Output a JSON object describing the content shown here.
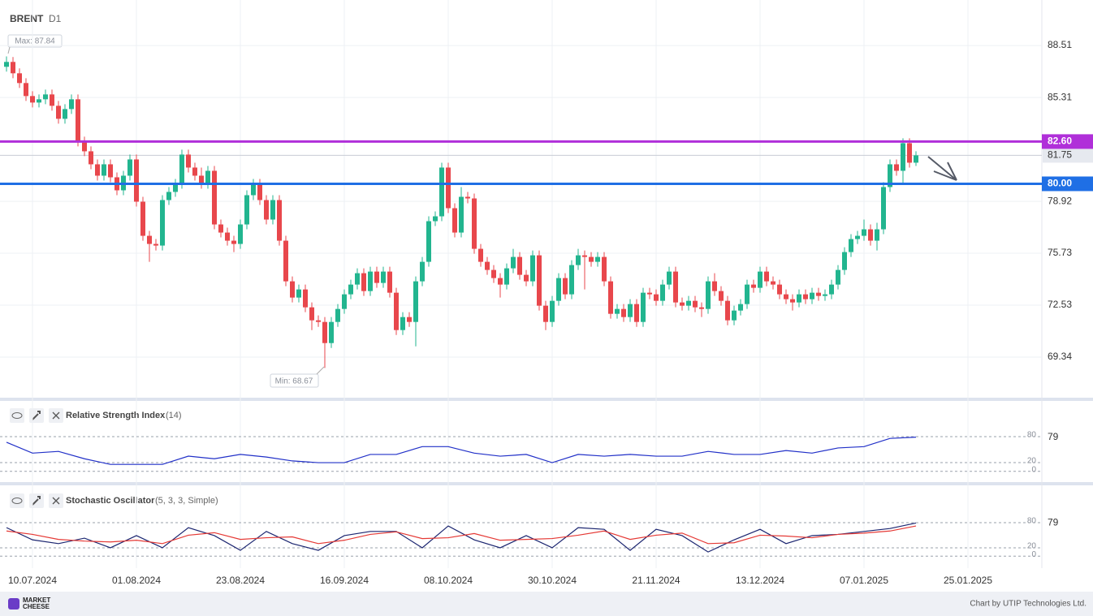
{
  "chart_data": [
    {
      "type": "candlestick",
      "title": "BRENT",
      "timeframe": "D1",
      "ylim": [
        66.84,
        91.31
      ],
      "yticks": [
        69.34,
        72.53,
        75.73,
        78.92,
        85.31,
        88.51
      ],
      "grid": true,
      "xticks": [
        {
          "value": 4,
          "label": "10.07.2024"
        },
        {
          "value": 20,
          "label": "01.08.2024"
        },
        {
          "value": 36,
          "label": "23.08.2024"
        },
        {
          "value": 52,
          "label": "16.09.2024"
        },
        {
          "value": 68,
          "label": "08.10.2024"
        },
        {
          "value": 84,
          "label": "30.10.2024"
        },
        {
          "value": 100,
          "label": "21.11.2024"
        },
        {
          "value": 116,
          "label": "13.12.2024"
        },
        {
          "value": 132,
          "label": "07.01.2025"
        },
        {
          "value": 148,
          "label": "25.01.2025"
        }
      ],
      "colors": {
        "up": "#22b58f",
        "down": "#e8474c"
      },
      "levels": [
        {
          "value": 82.6,
          "label": "82.60",
          "color": "#b02fd9"
        },
        {
          "value": 80,
          "label": "80.00",
          "color": "#1f6fe5"
        }
      ],
      "current": {
        "value": 81.75,
        "label": "81.75"
      },
      "annotations": [
        {
          "text": "Max: 87.84"
        },
        {
          "text": "Min: 68.67"
        }
      ],
      "ohlc": [
        [
          87.2,
          87.84,
          86.9,
          87.5
        ],
        [
          87.5,
          87.8,
          86.5,
          86.8
        ],
        [
          86.8,
          87.1,
          85.9,
          86.2
        ],
        [
          86.2,
          86.5,
          85.1,
          85.4
        ],
        [
          85.4,
          85.7,
          84.7,
          85.0
        ],
        [
          85.0,
          85.5,
          84.7,
          85.2
        ],
        [
          85.2,
          85.8,
          84.9,
          85.5
        ],
        [
          85.5,
          85.8,
          84.5,
          84.8
        ],
        [
          84.8,
          85.1,
          83.7,
          84.0
        ],
        [
          84.0,
          84.9,
          83.7,
          84.6
        ],
        [
          84.6,
          85.5,
          84.3,
          85.2
        ],
        [
          85.2,
          85.5,
          82.3,
          82.6
        ],
        [
          82.6,
          82.9,
          81.7,
          82.0
        ],
        [
          82.0,
          82.3,
          80.9,
          81.2
        ],
        [
          81.2,
          81.5,
          80.2,
          80.5
        ],
        [
          80.5,
          81.5,
          80.2,
          81.2
        ],
        [
          81.2,
          81.5,
          80.1,
          80.4
        ],
        [
          80.4,
          80.7,
          79.3,
          79.6
        ],
        [
          79.6,
          80.8,
          79.3,
          80.5
        ],
        [
          80.5,
          81.8,
          80.2,
          81.5
        ],
        [
          81.5,
          81.8,
          78.6,
          78.9
        ],
        [
          78.9,
          79.2,
          76.5,
          76.8
        ],
        [
          76.8,
          77.1,
          75.2,
          76.3
        ],
        [
          76.3,
          76.6,
          75.9,
          76.2
        ],
        [
          76.2,
          79.3,
          75.9,
          79.0
        ],
        [
          79.0,
          79.8,
          78.7,
          79.5
        ],
        [
          79.5,
          80.3,
          79.2,
          80.0
        ],
        [
          80.0,
          82.1,
          79.7,
          81.8
        ],
        [
          81.8,
          82.1,
          80.7,
          81.0
        ],
        [
          81.0,
          81.3,
          80.2,
          80.5
        ],
        [
          80.5,
          81.0,
          79.7,
          80.0
        ],
        [
          80.0,
          81.1,
          79.7,
          80.8
        ],
        [
          80.8,
          81.1,
          77.2,
          77.5
        ],
        [
          77.5,
          77.8,
          76.7,
          77.0
        ],
        [
          77.0,
          77.3,
          76.2,
          76.5
        ],
        [
          76.5,
          76.8,
          75.8,
          76.3
        ],
        [
          76.3,
          77.8,
          76.0,
          77.5
        ],
        [
          77.5,
          79.6,
          77.2,
          79.3
        ],
        [
          79.3,
          80.3,
          79.0,
          80.0
        ],
        [
          80.0,
          80.3,
          78.7,
          79.0
        ],
        [
          79.0,
          79.3,
          77.5,
          77.8
        ],
        [
          77.8,
          79.3,
          77.5,
          79.0
        ],
        [
          79.0,
          79.3,
          76.2,
          76.5
        ],
        [
          76.5,
          76.8,
          73.7,
          74.0
        ],
        [
          74.0,
          74.3,
          72.7,
          73.0
        ],
        [
          73.0,
          73.8,
          72.7,
          73.5
        ],
        [
          73.5,
          73.8,
          72.1,
          72.4
        ],
        [
          72.4,
          72.7,
          71.0,
          71.6
        ],
        [
          71.6,
          71.9,
          71.2,
          71.5
        ],
        [
          71.5,
          71.8,
          68.67,
          70.2
        ],
        [
          70.2,
          71.8,
          69.9,
          71.5
        ],
        [
          71.5,
          72.6,
          71.2,
          72.3
        ],
        [
          72.3,
          73.5,
          72.0,
          73.2
        ],
        [
          73.2,
          74.1,
          72.9,
          73.8
        ],
        [
          73.8,
          74.8,
          73.5,
          74.5
        ],
        [
          74.5,
          74.8,
          73.1,
          73.4
        ],
        [
          73.4,
          74.9,
          73.1,
          74.6
        ],
        [
          74.6,
          74.9,
          73.6,
          73.9
        ],
        [
          73.9,
          74.9,
          73.6,
          74.6
        ],
        [
          74.6,
          74.9,
          73.0,
          73.3
        ],
        [
          73.3,
          73.6,
          70.7,
          71.0
        ],
        [
          71.0,
          72.1,
          70.7,
          71.8
        ],
        [
          71.8,
          72.1,
          71.2,
          71.5
        ],
        [
          71.5,
          74.3,
          70.0,
          74.0
        ],
        [
          74.0,
          75.5,
          73.7,
          75.2
        ],
        [
          75.2,
          78.0,
          74.9,
          77.7
        ],
        [
          77.7,
          78.3,
          77.4,
          78.0
        ],
        [
          78.0,
          81.3,
          77.7,
          81.0
        ],
        [
          81.0,
          81.3,
          78.2,
          78.5
        ],
        [
          78.5,
          78.8,
          76.7,
          77.0
        ],
        [
          77.0,
          79.8,
          76.7,
          79.2
        ],
        [
          79.2,
          79.5,
          78.8,
          79.1
        ],
        [
          79.1,
          79.4,
          75.7,
          76.0
        ],
        [
          76.0,
          76.3,
          74.9,
          75.2
        ],
        [
          75.2,
          75.5,
          74.4,
          74.7
        ],
        [
          74.7,
          75.0,
          73.9,
          74.2
        ],
        [
          74.2,
          74.5,
          73.0,
          73.8
        ],
        [
          73.8,
          75.1,
          73.5,
          74.8
        ],
        [
          74.8,
          76.0,
          74.5,
          75.5
        ],
        [
          75.5,
          75.8,
          74.1,
          74.4
        ],
        [
          74.4,
          74.7,
          73.7,
          74.0
        ],
        [
          74.0,
          75.9,
          73.7,
          75.6
        ],
        [
          75.6,
          75.9,
          72.2,
          72.5
        ],
        [
          72.5,
          72.8,
          71.0,
          71.5
        ],
        [
          71.5,
          73.1,
          71.2,
          72.8
        ],
        [
          72.8,
          74.5,
          72.5,
          74.2
        ],
        [
          74.2,
          74.5,
          72.9,
          73.2
        ],
        [
          73.2,
          75.3,
          72.9,
          75.0
        ],
        [
          75.0,
          76.0,
          74.7,
          75.6
        ],
        [
          75.6,
          75.9,
          73.5,
          75.5
        ],
        [
          75.5,
          75.8,
          74.9,
          75.2
        ],
        [
          75.2,
          75.8,
          74.9,
          75.5
        ],
        [
          75.5,
          75.8,
          73.7,
          74.0
        ],
        [
          74.0,
          74.3,
          71.7,
          72.0
        ],
        [
          72.0,
          72.6,
          71.7,
          72.3
        ],
        [
          72.3,
          72.6,
          71.5,
          71.8
        ],
        [
          71.8,
          72.9,
          71.5,
          72.6
        ],
        [
          72.6,
          72.9,
          71.2,
          71.5
        ],
        [
          71.5,
          73.6,
          71.2,
          73.3
        ],
        [
          73.3,
          73.6,
          72.9,
          73.2
        ],
        [
          73.2,
          73.5,
          72.5,
          72.8
        ],
        [
          72.8,
          74.1,
          72.5,
          73.8
        ],
        [
          73.8,
          74.9,
          73.5,
          74.6
        ],
        [
          74.6,
          74.9,
          72.4,
          72.7
        ],
        [
          72.7,
          73.0,
          72.2,
          72.5
        ],
        [
          72.5,
          73.1,
          72.2,
          72.8
        ],
        [
          72.8,
          73.1,
          72.1,
          72.4
        ],
        [
          72.4,
          72.7,
          71.8,
          72.3
        ],
        [
          72.3,
          74.3,
          72.0,
          74.0
        ],
        [
          74.0,
          74.5,
          73.1,
          73.4
        ],
        [
          73.4,
          73.7,
          72.5,
          72.8
        ],
        [
          72.8,
          73.1,
          71.3,
          71.6
        ],
        [
          71.6,
          72.5,
          71.3,
          72.2
        ],
        [
          72.2,
          72.9,
          71.9,
          72.6
        ],
        [
          72.6,
          74.1,
          72.3,
          73.8
        ],
        [
          73.8,
          74.1,
          73.3,
          73.6
        ],
        [
          73.6,
          74.9,
          73.3,
          74.6
        ],
        [
          74.6,
          74.9,
          73.7,
          74.0
        ],
        [
          74.0,
          74.3,
          73.5,
          73.8
        ],
        [
          73.8,
          74.1,
          72.9,
          73.2
        ],
        [
          73.2,
          73.5,
          72.6,
          72.9
        ],
        [
          72.9,
          73.2,
          72.2,
          72.7
        ],
        [
          72.7,
          73.5,
          72.4,
          73.2
        ],
        [
          73.2,
          73.5,
          72.6,
          72.9
        ],
        [
          72.9,
          73.6,
          72.6,
          73.3
        ],
        [
          73.3,
          73.6,
          72.8,
          73.1
        ],
        [
          73.1,
          73.5,
          72.8,
          73.2
        ],
        [
          73.2,
          74.1,
          72.9,
          73.8
        ],
        [
          73.8,
          75.0,
          73.5,
          74.7
        ],
        [
          74.7,
          76.1,
          74.4,
          75.8
        ],
        [
          75.8,
          76.9,
          75.5,
          76.6
        ],
        [
          76.6,
          77.1,
          76.3,
          76.8
        ],
        [
          76.8,
          77.8,
          76.5,
          77.2
        ],
        [
          77.2,
          77.5,
          76.2,
          76.5
        ],
        [
          76.5,
          77.6,
          75.9,
          77.2
        ],
        [
          77.2,
          80.1,
          76.9,
          79.8
        ],
        [
          79.8,
          81.5,
          79.5,
          81.2
        ],
        [
          81.2,
          81.5,
          80.5,
          80.8
        ],
        [
          80.8,
          82.8,
          80.0,
          82.5
        ],
        [
          82.5,
          82.8,
          81.0,
          81.3
        ],
        [
          81.3,
          82.0,
          81.1,
          81.75
        ]
      ]
    },
    {
      "type": "line",
      "title": "Relative Strength Index",
      "params": "(14)",
      "ylim": [
        0,
        100
      ],
      "levels": [
        80,
        20,
        0
      ],
      "last": 79,
      "x": [
        0,
        4,
        8,
        12,
        16,
        20,
        24,
        28,
        32,
        36,
        40,
        44,
        48,
        52,
        56,
        60,
        64,
        68,
        72,
        76,
        80,
        84,
        88,
        92,
        96,
        100,
        104,
        108,
        112,
        116,
        120,
        124,
        128,
        132,
        136,
        140
      ],
      "series": [
        {
          "color": "#2130c8",
          "values": [
            67,
            42,
            46,
            29,
            16,
            16,
            16,
            35,
            29,
            39,
            33,
            24,
            20,
            20,
            39,
            39,
            57,
            57,
            42,
            35,
            39,
            20,
            39,
            35,
            39,
            35,
            35,
            46,
            39,
            39,
            48,
            42,
            54,
            57,
            76,
            79
          ]
        }
      ]
    },
    {
      "type": "line",
      "title": "Stochastic Oscillator",
      "params": "(5, 3, 3, Simple)",
      "ylim": [
        0,
        100
      ],
      "levels": [
        80,
        20,
        0
      ],
      "last": 79,
      "x": [
        0,
        4,
        8,
        12,
        16,
        20,
        24,
        28,
        32,
        36,
        40,
        44,
        48,
        52,
        56,
        60,
        64,
        68,
        72,
        76,
        80,
        84,
        88,
        92,
        96,
        100,
        104,
        108,
        112,
        116,
        120,
        124,
        128,
        132,
        136,
        140
      ],
      "series": [
        {
          "color": "#1b2570",
          "values": [
            68,
            39,
            30,
            43,
            20,
            49,
            20,
            68,
            49,
            14,
            59,
            30,
            14,
            49,
            59,
            59,
            20,
            72,
            39,
            20,
            49,
            20,
            68,
            64,
            14,
            64,
            49,
            10,
            39,
            64,
            30,
            49,
            52,
            59,
            66,
            79
          ]
        },
        {
          "color": "#e53935",
          "values": [
            60,
            52,
            40,
            36,
            34,
            38,
            30,
            50,
            56,
            40,
            44,
            46,
            30,
            38,
            52,
            58,
            42,
            44,
            54,
            38,
            40,
            42,
            50,
            60,
            40,
            50,
            55,
            30,
            32,
            50,
            48,
            44,
            52,
            55,
            60,
            72
          ]
        }
      ]
    }
  ],
  "branding": {
    "logo": [
      "MARKET",
      "CHEESE"
    ],
    "credit": "Chart by UTIP Technologies Ltd."
  }
}
